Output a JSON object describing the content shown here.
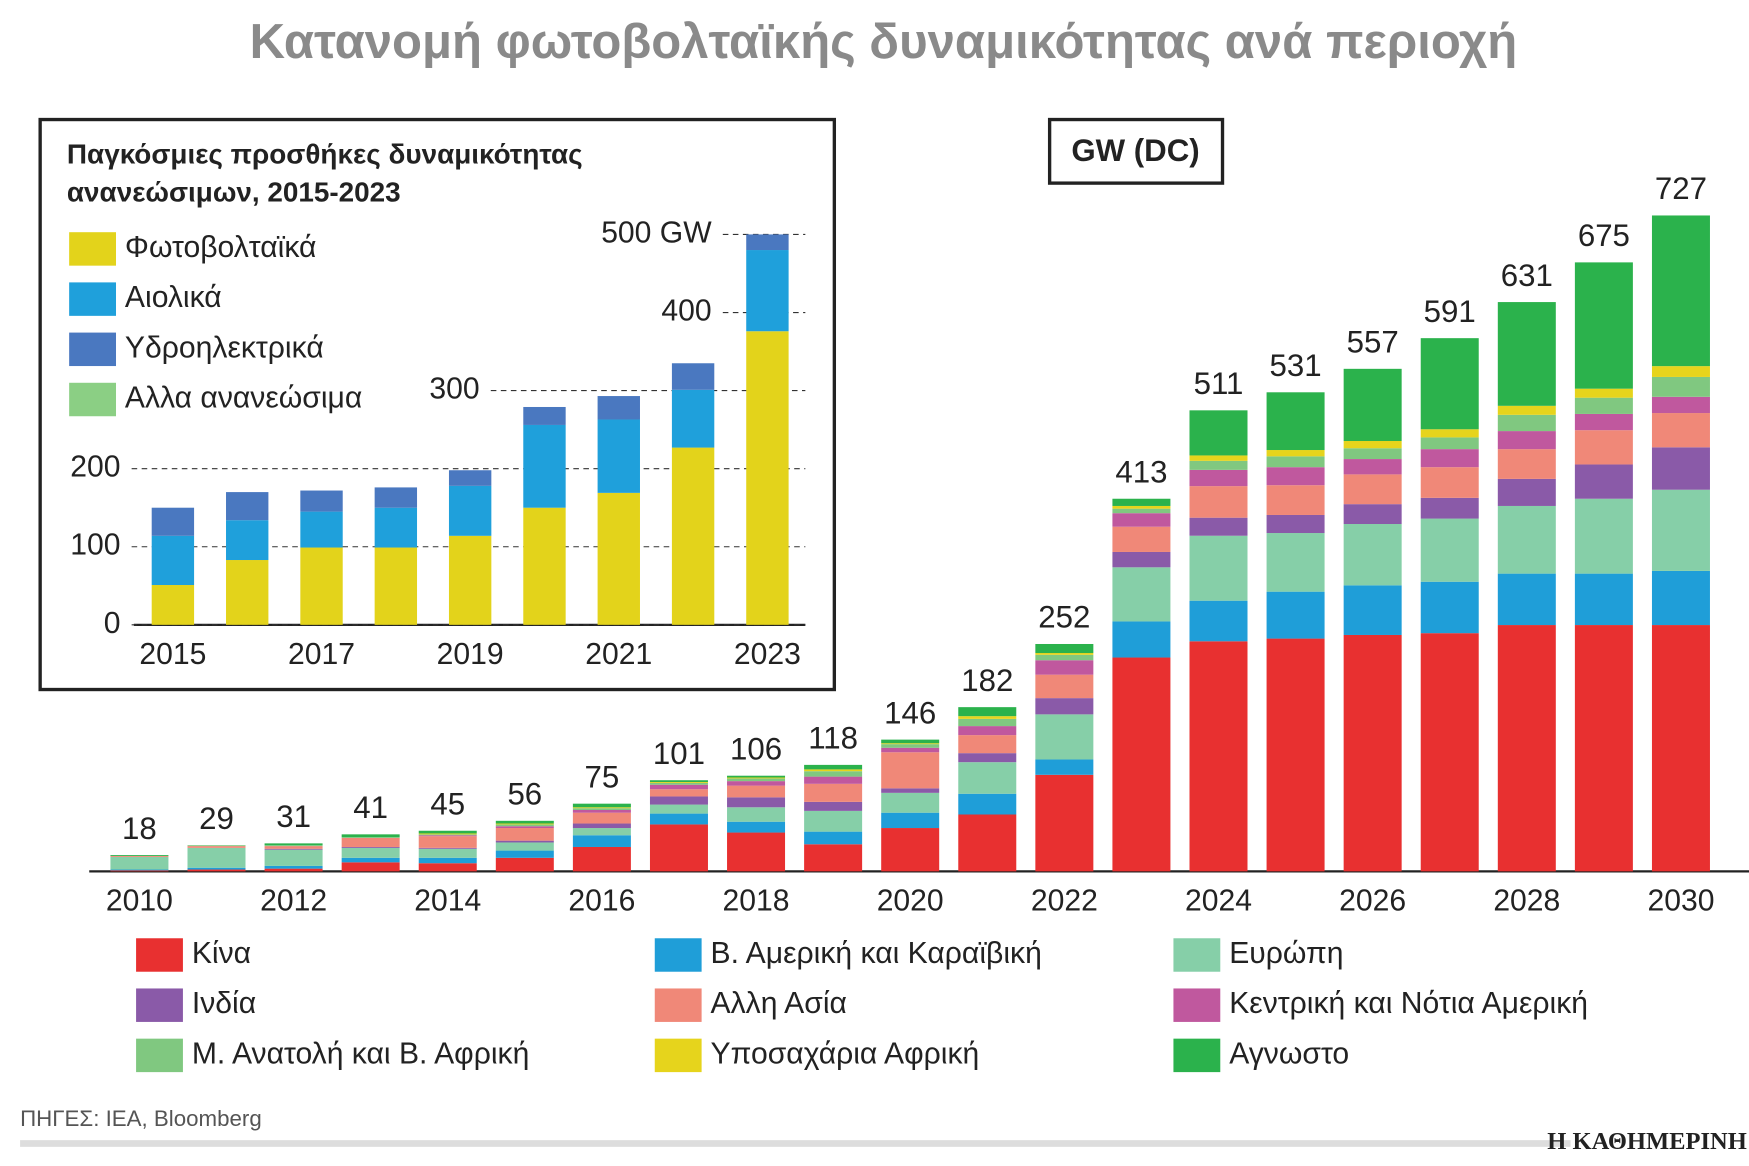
{
  "title": "Κατανομή φωτοβολταϊκής δυναμικότητας ανά περιοχή",
  "source": "ΠΗΓΕΣ: IEA, Bloomberg",
  "brand": "Η ΚΑΘΗΜΕΡΙΝΗ",
  "chart_data": [
    {
      "type": "stacked-bar",
      "unit_label": "GW (DC)",
      "categories": [
        "2010",
        null,
        "2012",
        null,
        "2014",
        null,
        "2016",
        null,
        "2018",
        null,
        "2020",
        null,
        "2022",
        null,
        "2024",
        null,
        "2026",
        null,
        "2028",
        null,
        "2030"
      ],
      "totals": [
        18,
        29,
        31,
        41,
        45,
        56,
        75,
        101,
        106,
        118,
        146,
        182,
        252,
        413,
        511,
        531,
        557,
        591,
        631,
        675,
        727
      ],
      "series": [
        {
          "name": "Κίνα",
          "color": "#e83030",
          "values": [
            1,
            2,
            3,
            10,
            9,
            15,
            27,
            52,
            43,
            30,
            48,
            63,
            107,
            237,
            255,
            258,
            262,
            264,
            273,
            273,
            273
          ]
        },
        {
          "name": "Β. Αμερική και Καραϊβική",
          "color": "#1f9ed8",
          "values": [
            1,
            2,
            3,
            5,
            6,
            8,
            13,
            12,
            12,
            14,
            17,
            23,
            17,
            40,
            45,
            52,
            55,
            57,
            57,
            57,
            60
          ]
        },
        {
          "name": "Ευρώπη",
          "color": "#86cfa8",
          "values": [
            14,
            22,
            18,
            11,
            10,
            9,
            8,
            10,
            16,
            23,
            22,
            35,
            50,
            60,
            72,
            65,
            68,
            70,
            75,
            83,
            90
          ]
        },
        {
          "name": "Ινδία",
          "color": "#8a5aa8",
          "values": [
            0,
            0,
            1,
            1,
            1,
            2,
            5,
            9,
            11,
            10,
            5,
            10,
            18,
            17,
            20,
            20,
            22,
            23,
            30,
            38,
            47
          ]
        },
        {
          "name": "Αλλη Ασία",
          "color": "#f08878",
          "values": [
            1,
            2,
            3,
            10,
            13,
            14,
            12,
            8,
            13,
            20,
            40,
            20,
            26,
            28,
            35,
            33,
            33,
            34,
            33,
            38,
            38
          ]
        },
        {
          "name": "Κεντρική και Νότια Αμερική",
          "color": "#c0589e",
          "values": [
            0,
            0,
            0,
            0,
            1,
            2,
            3,
            5,
            5,
            8,
            5,
            10,
            16,
            15,
            18,
            20,
            17,
            20,
            20,
            18,
            18
          ]
        },
        {
          "name": "Μ. Ανατολή και Β. Αφρική",
          "color": "#80c880",
          "values": [
            0,
            1,
            1,
            1,
            1,
            2,
            2,
            2,
            3,
            6,
            4,
            8,
            6,
            5,
            10,
            12,
            12,
            13,
            18,
            18,
            22
          ]
        },
        {
          "name": "Υποσαχάρια Αφρική",
          "color": "#e6d41c",
          "values": [
            0,
            0,
            0,
            0,
            1,
            1,
            1,
            1,
            1,
            2,
            1,
            3,
            2,
            3,
            6,
            7,
            8,
            9,
            10,
            10,
            12
          ]
        },
        {
          "name": "Αγνωστο",
          "color": "#2bb24c",
          "values": [
            1,
            0,
            2,
            3,
            3,
            3,
            4,
            2,
            2,
            5,
            4,
            10,
            10,
            8,
            50,
            64,
            80,
            101,
            115,
            140,
            167
          ]
        }
      ]
    },
    {
      "type": "stacked-bar",
      "title": [
        "Παγκόσμιες προσθήκες δυναμικότητας",
        "ανανεώσιμων, 2015-2023"
      ],
      "categories": [
        "2015",
        null,
        "2017",
        null,
        "2019",
        null,
        "2021",
        null,
        "2023"
      ],
      "ylim": [
        0,
        510
      ],
      "yticks": [
        0,
        100,
        200,
        300,
        400,
        {
          "value": 500,
          "label": "500 GW"
        }
      ],
      "series": [
        {
          "name": "Φωτοβολταϊκά",
          "color": "#e3d31b",
          "values": [
            51,
            83,
            99,
            99,
            114,
            150,
            169,
            227,
            376
          ]
        },
        {
          "name": "Αιολικά",
          "color": "#1fa0db",
          "values": [
            63,
            51,
            46,
            51,
            64,
            106,
            94,
            74,
            104
          ]
        },
        {
          "name": "Υδροηλεκτρικά",
          "color": "#4a78c0",
          "values": [
            36,
            36,
            27,
            26,
            20,
            23,
            30,
            34,
            20
          ]
        },
        {
          "name": "Αλλα ανανεώσιμα",
          "color": "#8bcf84",
          "values": [
            0,
            0,
            0,
            0,
            0,
            0,
            0,
            0,
            0
          ]
        }
      ]
    }
  ]
}
